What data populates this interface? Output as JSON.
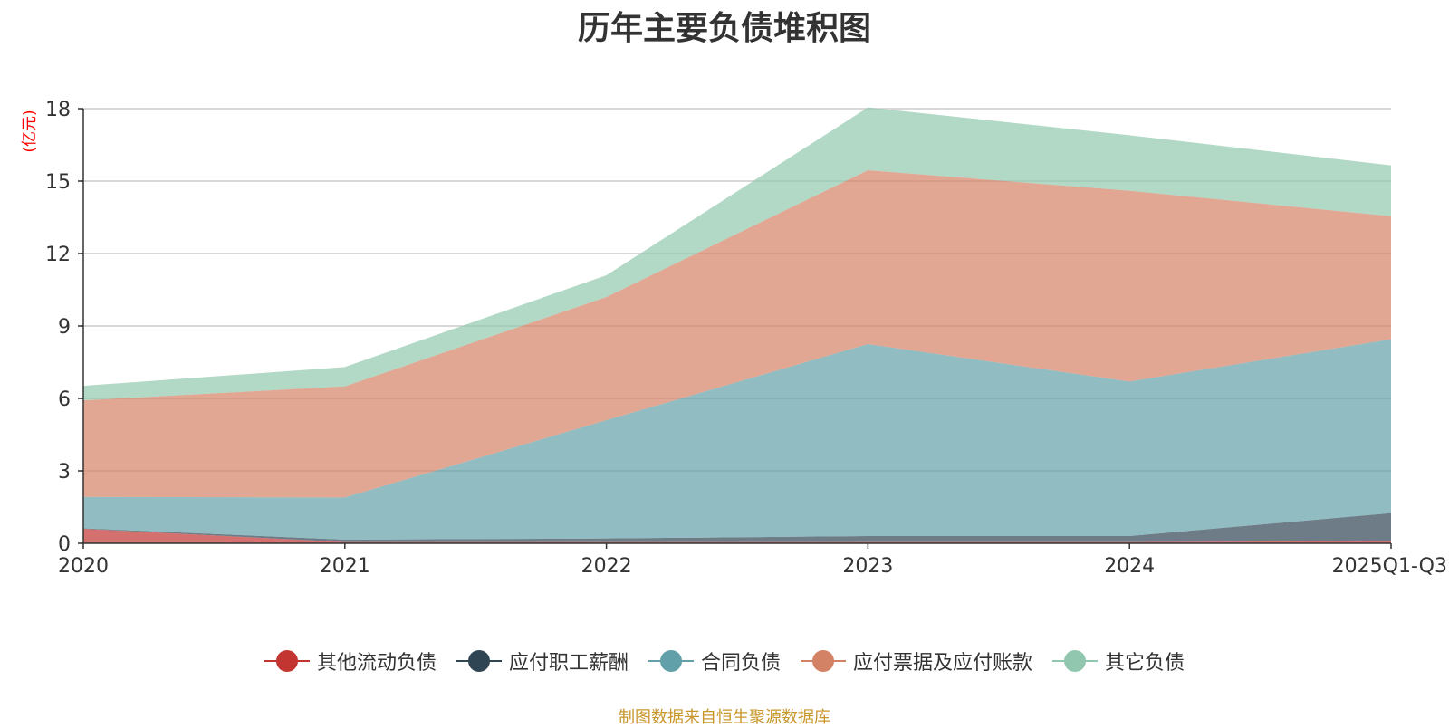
{
  "chart_data": {
    "type": "area",
    "stacked": true,
    "title": "历年主要负债堆积图",
    "ylabel": "(亿元)",
    "xlabel": "",
    "categories": [
      "2020",
      "2021",
      "2022",
      "2023",
      "2024",
      "2025Q1-Q3"
    ],
    "ylim": [
      0,
      18
    ],
    "yticks": [
      0,
      3,
      6,
      9,
      12,
      15,
      18
    ],
    "grid": true,
    "legend_position": "bottom",
    "series": [
      {
        "name": "其他流动负债",
        "color": "#c23531",
        "values": [
          0.6,
          0.05,
          0.05,
          0.05,
          0.05,
          0.1
        ]
      },
      {
        "name": "应付职工薪酬",
        "color": "#2f4554",
        "values": [
          0.02,
          0.1,
          0.15,
          0.25,
          0.25,
          1.15
        ]
      },
      {
        "name": "合同负债",
        "color": "#61a0a8",
        "values": [
          1.3,
          1.75,
          4.9,
          7.95,
          6.4,
          7.2
        ]
      },
      {
        "name": "应付票据及应付账款",
        "color": "#d48265",
        "values": [
          4.0,
          4.6,
          5.1,
          7.2,
          7.9,
          5.1
        ]
      },
      {
        "name": "其它负债",
        "color": "#91c7ae",
        "values": [
          0.6,
          0.8,
          0.9,
          2.6,
          2.3,
          2.1
        ]
      }
    ]
  },
  "source_note": "制图数据来自恒生聚源数据库"
}
